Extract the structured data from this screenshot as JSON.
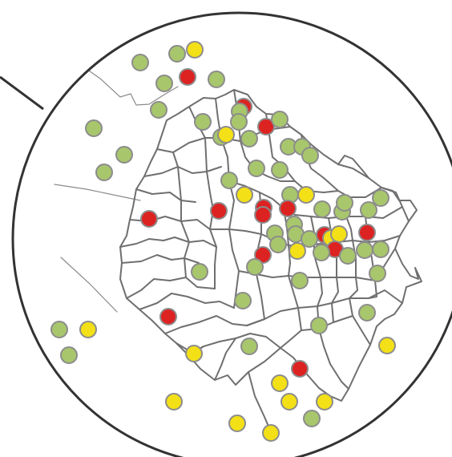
{
  "map": {
    "legend": [],
    "colors": {
      "background": "#ffffff",
      "lens_border": "#333333",
      "district_border": "#6f6f6f",
      "outer_line": "#8a8a8a",
      "marker_stroke": "#8c8c8c",
      "status_green": "#a8c66c",
      "status_yellow": "#f3e016",
      "status_red": "#dd2222"
    },
    "marker_status_counts": {
      "green": 58,
      "yellow": 19,
      "red": 14
    }
  }
}
